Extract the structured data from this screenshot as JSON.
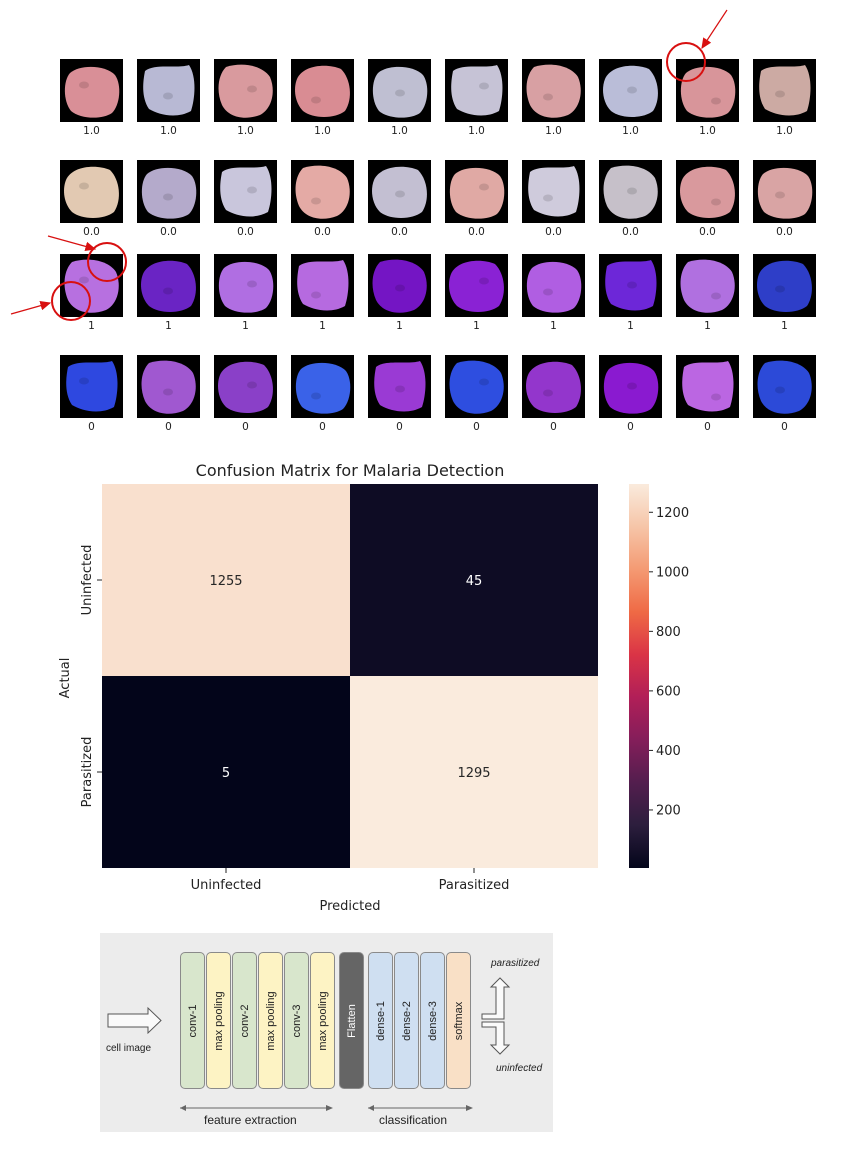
{
  "cell_grid": {
    "rows": [
      {
        "labels": [
          "1.0",
          "1.0",
          "1.0",
          "1.0",
          "1.0",
          "1.0",
          "1.0",
          "1.0",
          "1.0",
          "1.0"
        ],
        "fills": [
          "#d98f97",
          "#b8b9d4",
          "#d99a9e",
          "#d98c93",
          "#bfbfd2",
          "#c6c3d6",
          "#d8a0a3",
          "#babdd8",
          "#d8959a",
          "#ccaaa3"
        ]
      },
      {
        "labels": [
          "0.0",
          "0.0",
          "0.0",
          "0.0",
          "0.0",
          "0.0",
          "0.0",
          "0.0",
          "0.0",
          "0.0"
        ],
        "fills": [
          "#e2c9b2",
          "#b4aacb",
          "#c9c6dc",
          "#e4aaa5",
          "#c3bfd2",
          "#e0a9a4",
          "#cfcbdc",
          "#c6c0c9",
          "#d9999d",
          "#d9a4a4"
        ]
      },
      {
        "labels": [
          "1",
          "1",
          "1",
          "1",
          "1",
          "1",
          "1",
          "1",
          "1",
          "1"
        ],
        "fills": [
          "#b770e0",
          "#6a24c4",
          "#b06ee2",
          "#b66ae0",
          "#7415c4",
          "#8a22d4",
          "#b05ee2",
          "#6d27d8",
          "#b070e0",
          "#2e3ec8"
        ]
      },
      {
        "labels": [
          "0",
          "0",
          "0",
          "0",
          "0",
          "0",
          "0",
          "0",
          "0",
          "0"
        ],
        "fills": [
          "#2e48e0",
          "#a058d0",
          "#8a40c8",
          "#3a62e8",
          "#9a3ad4",
          "#2e4ee0",
          "#9336cc",
          "#8a1ad0",
          "#bb66e2",
          "#2c4ad8"
        ]
      }
    ]
  },
  "chart_data": {
    "type": "heatmap",
    "title": "Confusion Matrix for Malaria Detection",
    "xlabel": "Predicted",
    "ylabel": "Actual",
    "x_categories": [
      "Uninfected",
      "Parasitized"
    ],
    "y_categories": [
      "Uninfected",
      "Parasitized"
    ],
    "values": [
      [
        1255,
        45
      ],
      [
        5,
        1295
      ]
    ],
    "colorbar": {
      "ticks": [
        "200",
        "400",
        "600",
        "800",
        "1000",
        "1200"
      ],
      "min": 5,
      "max": 1295,
      "colormap": [
        "#03051a",
        "#2c1e3d",
        "#531e4e",
        "#841e5a",
        "#b11f58",
        "#da3446",
        "#ef6a45",
        "#f49a73",
        "#f6c5a8",
        "#faebdd"
      ]
    },
    "annotation_colors": {
      "light": "#ffffff",
      "dark": "#262626"
    }
  },
  "architecture": {
    "input_label": "cell image",
    "layers": [
      {
        "label": "conv-1",
        "color": "#d8e6cc"
      },
      {
        "label": "max pooling",
        "color": "#fdf3c4"
      },
      {
        "label": "conv-2",
        "color": "#d8e6cc"
      },
      {
        "label": "max pooling",
        "color": "#fdf3c4"
      },
      {
        "label": "conv-3",
        "color": "#d8e6cc"
      },
      {
        "label": "max pooling",
        "color": "#fdf3c4"
      },
      {
        "label": "Flatten",
        "color": "#656565"
      },
      {
        "label": "dense-1",
        "color": "#cfdff1"
      },
      {
        "label": "dense-2",
        "color": "#cfdff1"
      },
      {
        "label": "dense-3",
        "color": "#cfdff1"
      },
      {
        "label": "softmax",
        "color": "#f9e0c6"
      }
    ],
    "outputs": {
      "top": "parasitized",
      "bottom": "uninfected"
    },
    "groups": {
      "left": "feature extraction",
      "right": "classification"
    }
  },
  "colors": {
    "marker_red": "#d81010",
    "background": "#ffffff",
    "diagram_bg": "#ececec"
  }
}
